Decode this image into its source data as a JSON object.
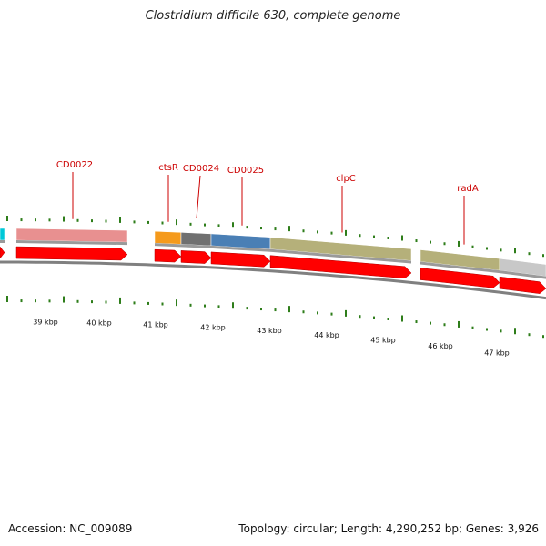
{
  "title": "Clostridium difficile 630, complete genome",
  "genes": [
    {
      "name": "",
      "color": "#00c8d8"
    },
    {
      "name": "CD0022",
      "color": "#e89090"
    },
    {
      "name": "ctsR",
      "color": "#f59a1c"
    },
    {
      "name": "",
      "color": "#707070"
    },
    {
      "name": "CD0025",
      "color": "#4a7fb5"
    },
    {
      "name": "clpC",
      "color": "#b5b07a"
    },
    {
      "name": "radA",
      "color": "#b5b07a"
    },
    {
      "name": "",
      "color": "#c8c8c8"
    }
  ],
  "extra_labels": [
    "CD0024"
  ],
  "kbp_labels": [
    "39 kbp",
    "40 kbp",
    "41 kbp",
    "42 kbp",
    "43 kbp",
    "44 kbp",
    "45 kbp",
    "46 kbp",
    "47 kbp"
  ],
  "colors": {
    "arrow": "#ff0000",
    "tick": "#2e7d1a",
    "backbone": "#808080",
    "label": "#cc0000"
  },
  "footer": {
    "accession": "Accession: NC_009089",
    "summary": "Topology: circular; Length: 4,290,252 bp; Genes: 3,926"
  }
}
